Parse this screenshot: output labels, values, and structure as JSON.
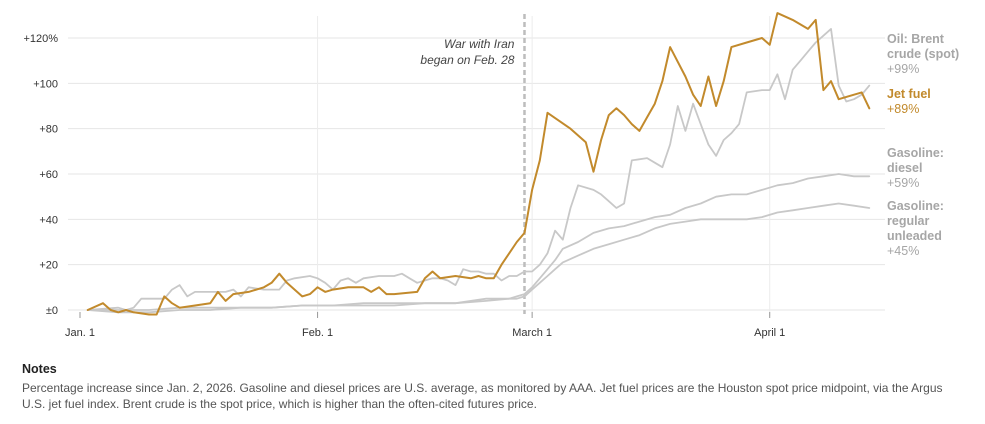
{
  "colors": {
    "jet": "#c28a2c",
    "gray": "#c8c8c8",
    "graylabel": "#a6a6a6",
    "divider": "#bdbdbd"
  },
  "chart_data": {
    "type": "line",
    "x_domain": [
      0,
      104
    ],
    "ylim": [
      0,
      125
    ],
    "y_ticks": [
      {
        "v": 0,
        "label": "±0"
      },
      {
        "v": 20,
        "label": "+20"
      },
      {
        "v": 40,
        "label": "+40"
      },
      {
        "v": 60,
        "label": "+60"
      },
      {
        "v": 80,
        "label": "+80"
      },
      {
        "v": 100,
        "label": "+100"
      },
      {
        "v": 120,
        "label": "+120%"
      }
    ],
    "x_ticks": [
      {
        "day": 0,
        "label": "Jan. 1"
      },
      {
        "day": 31,
        "label": "Feb. 1"
      },
      {
        "day": 59,
        "label": "March 1"
      },
      {
        "day": 90,
        "label": "April 1"
      }
    ],
    "event": {
      "day": 58,
      "line1": "War with Iran",
      "line2": "began on Feb. 28"
    },
    "series": [
      {
        "key": "brent",
        "name_lines": [
          "Oil: Brent",
          "crude (spot)"
        ],
        "end_label": "+99%",
        "color": "gray",
        "points": [
          [
            1,
            0
          ],
          [
            5,
            1
          ],
          [
            6,
            0
          ],
          [
            7,
            1
          ],
          [
            8,
            5
          ],
          [
            11,
            5
          ],
          [
            12,
            9
          ],
          [
            13,
            11
          ],
          [
            14,
            6
          ],
          [
            15,
            8
          ],
          [
            17,
            8
          ],
          [
            19,
            8
          ],
          [
            20,
            9
          ],
          [
            21,
            6
          ],
          [
            22,
            10
          ],
          [
            24,
            9
          ],
          [
            26,
            9
          ],
          [
            27,
            13
          ],
          [
            28,
            14
          ],
          [
            30,
            15
          ],
          [
            31,
            14
          ],
          [
            32,
            12
          ],
          [
            33,
            9
          ],
          [
            34,
            13
          ],
          [
            35,
            14
          ],
          [
            36,
            12
          ],
          [
            37,
            14
          ],
          [
            39,
            15
          ],
          [
            41,
            15
          ],
          [
            42,
            16
          ],
          [
            43,
            14
          ],
          [
            44,
            12
          ],
          [
            45,
            13
          ],
          [
            46,
            14
          ],
          [
            47,
            14
          ],
          [
            48,
            13
          ],
          [
            49,
            11
          ],
          [
            50,
            18
          ],
          [
            51,
            17
          ],
          [
            52,
            17
          ],
          [
            53,
            16
          ],
          [
            54,
            16
          ],
          [
            55,
            13
          ],
          [
            56,
            15
          ],
          [
            57,
            15
          ],
          [
            58,
            17
          ],
          [
            59,
            17
          ],
          [
            60,
            20
          ],
          [
            61,
            25
          ],
          [
            62,
            35
          ],
          [
            63,
            31
          ],
          [
            64,
            45
          ],
          [
            65,
            55
          ],
          [
            67,
            53
          ],
          [
            68,
            51
          ],
          [
            69,
            48
          ],
          [
            70,
            45
          ],
          [
            71,
            47
          ],
          [
            72,
            66
          ],
          [
            74,
            67
          ],
          [
            75,
            65
          ],
          [
            76,
            63
          ],
          [
            77,
            73
          ],
          [
            78,
            90
          ],
          [
            79,
            79
          ],
          [
            80,
            91
          ],
          [
            81,
            82
          ],
          [
            82,
            73
          ],
          [
            83,
            68
          ],
          [
            84,
            75
          ],
          [
            85,
            78
          ],
          [
            86,
            82
          ],
          [
            87,
            96
          ],
          [
            89,
            97
          ],
          [
            90,
            97
          ],
          [
            91,
            104
          ],
          [
            92,
            93
          ],
          [
            93,
            106
          ],
          [
            94,
            110
          ],
          [
            95,
            114
          ],
          [
            96,
            118
          ],
          [
            97,
            121
          ],
          [
            98,
            124
          ],
          [
            99,
            99
          ],
          [
            100,
            92
          ],
          [
            101,
            93
          ],
          [
            102,
            95
          ],
          [
            103,
            99
          ]
        ]
      },
      {
        "key": "jet",
        "name_lines": [
          "Jet fuel"
        ],
        "end_label": "+89%",
        "color": "jet",
        "points": [
          [
            1,
            0
          ],
          [
            3,
            3
          ],
          [
            4,
            0
          ],
          [
            5,
            -1
          ],
          [
            6,
            0
          ],
          [
            7,
            -1
          ],
          [
            9,
            -2
          ],
          [
            10,
            -2
          ],
          [
            11,
            6
          ],
          [
            12,
            3
          ],
          [
            13,
            1
          ],
          [
            15,
            2
          ],
          [
            17,
            3
          ],
          [
            18,
            8
          ],
          [
            19,
            4
          ],
          [
            20,
            7
          ],
          [
            22,
            8
          ],
          [
            24,
            10
          ],
          [
            25,
            12
          ],
          [
            26,
            16
          ],
          [
            27,
            12
          ],
          [
            28,
            9
          ],
          [
            29,
            6
          ],
          [
            30,
            7
          ],
          [
            31,
            10
          ],
          [
            32,
            8
          ],
          [
            33,
            9
          ],
          [
            35,
            10
          ],
          [
            37,
            10
          ],
          [
            38,
            8
          ],
          [
            39,
            10
          ],
          [
            40,
            7
          ],
          [
            41,
            7
          ],
          [
            44,
            8
          ],
          [
            45,
            14
          ],
          [
            46,
            17
          ],
          [
            47,
            14
          ],
          [
            49,
            15
          ],
          [
            51,
            14
          ],
          [
            52,
            15
          ],
          [
            53,
            14
          ],
          [
            54,
            14
          ],
          [
            55,
            20
          ],
          [
            56,
            25
          ],
          [
            57,
            30
          ],
          [
            58,
            34
          ],
          [
            59,
            53
          ],
          [
            60,
            66
          ],
          [
            61,
            87
          ],
          [
            64,
            80
          ],
          [
            66,
            74
          ],
          [
            67,
            61
          ],
          [
            68,
            75
          ],
          [
            69,
            86
          ],
          [
            70,
            89
          ],
          [
            71,
            86
          ],
          [
            72,
            82
          ],
          [
            73,
            79
          ],
          [
            74,
            85
          ],
          [
            75,
            91
          ],
          [
            76,
            101
          ],
          [
            77,
            116
          ],
          [
            79,
            103
          ],
          [
            80,
            95
          ],
          [
            81,
            90
          ],
          [
            82,
            103
          ],
          [
            83,
            90
          ],
          [
            84,
            101
          ],
          [
            85,
            116
          ],
          [
            87,
            118
          ],
          [
            89,
            120
          ],
          [
            90,
            117
          ],
          [
            91,
            131
          ],
          [
            93,
            128
          ],
          [
            95,
            124
          ],
          [
            96,
            128
          ],
          [
            97,
            97
          ],
          [
            98,
            101
          ],
          [
            99,
            93
          ],
          [
            100,
            94
          ],
          [
            101,
            95
          ],
          [
            102,
            96
          ],
          [
            103,
            89
          ]
        ]
      },
      {
        "key": "diesel",
        "name_lines": [
          "Gasoline:",
          "diesel"
        ],
        "end_label": "+59%",
        "color": "gray",
        "points": [
          [
            1,
            0
          ],
          [
            5,
            0
          ],
          [
            9,
            0
          ],
          [
            13,
            1
          ],
          [
            17,
            1
          ],
          [
            21,
            1
          ],
          [
            25,
            1
          ],
          [
            29,
            2
          ],
          [
            33,
            2
          ],
          [
            37,
            3
          ],
          [
            41,
            3
          ],
          [
            45,
            3
          ],
          [
            49,
            3
          ],
          [
            53,
            5
          ],
          [
            56,
            5
          ],
          [
            57,
            6
          ],
          [
            58,
            7
          ],
          [
            59,
            10
          ],
          [
            60,
            14
          ],
          [
            61,
            18
          ],
          [
            62,
            22
          ],
          [
            63,
            27
          ],
          [
            65,
            30
          ],
          [
            67,
            34
          ],
          [
            69,
            36
          ],
          [
            71,
            37
          ],
          [
            73,
            39
          ],
          [
            75,
            41
          ],
          [
            77,
            42
          ],
          [
            79,
            45
          ],
          [
            81,
            47
          ],
          [
            83,
            50
          ],
          [
            85,
            51
          ],
          [
            87,
            51
          ],
          [
            89,
            53
          ],
          [
            91,
            55
          ],
          [
            93,
            56
          ],
          [
            95,
            58
          ],
          [
            97,
            59
          ],
          [
            99,
            60
          ],
          [
            101,
            59
          ],
          [
            103,
            59
          ]
        ]
      },
      {
        "key": "regular",
        "name_lines": [
          "Gasoline:",
          "regular",
          "unleaded"
        ],
        "end_label": "+45%",
        "color": "gray",
        "points": [
          [
            1,
            0
          ],
          [
            5,
            -1
          ],
          [
            9,
            -1
          ],
          [
            13,
            0
          ],
          [
            17,
            0
          ],
          [
            21,
            1
          ],
          [
            25,
            1
          ],
          [
            29,
            2
          ],
          [
            33,
            2
          ],
          [
            37,
            2
          ],
          [
            41,
            2
          ],
          [
            45,
            3
          ],
          [
            49,
            3
          ],
          [
            53,
            4
          ],
          [
            56,
            5
          ],
          [
            57,
            5
          ],
          [
            58,
            6
          ],
          [
            59,
            9
          ],
          [
            60,
            12
          ],
          [
            61,
            15
          ],
          [
            62,
            18
          ],
          [
            63,
            21
          ],
          [
            65,
            24
          ],
          [
            67,
            27
          ],
          [
            69,
            29
          ],
          [
            71,
            31
          ],
          [
            73,
            33
          ],
          [
            75,
            36
          ],
          [
            77,
            38
          ],
          [
            79,
            39
          ],
          [
            81,
            40
          ],
          [
            83,
            40
          ],
          [
            85,
            40
          ],
          [
            87,
            40
          ],
          [
            89,
            41
          ],
          [
            91,
            43
          ],
          [
            93,
            44
          ],
          [
            95,
            45
          ],
          [
            97,
            46
          ],
          [
            99,
            47
          ],
          [
            101,
            46
          ],
          [
            103,
            45
          ]
        ]
      }
    ]
  },
  "notes": {
    "title": "Notes",
    "text": "Percentage increase since Jan. 2, 2026. Gasoline and diesel prices are U.S. average, as monitored by AAA. Jet fuel prices are the Houston spot price midpoint, via the Argus U.S. jet fuel index. Brent crude is the spot price, which is higher than the often-cited futures price."
  }
}
